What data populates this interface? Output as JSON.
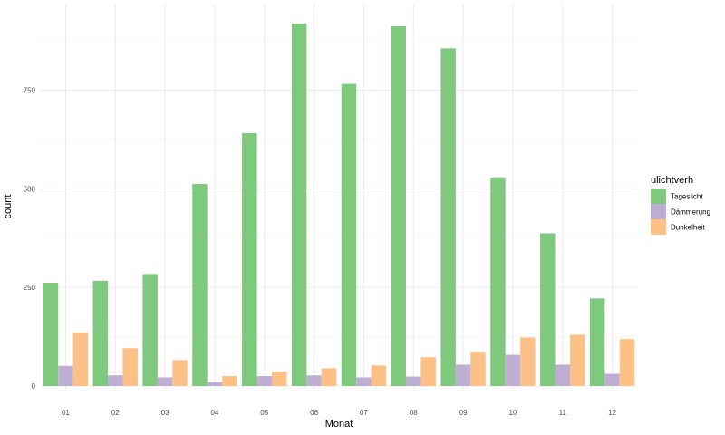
{
  "chart_data": {
    "type": "bar",
    "xlabel": "Monat",
    "ylabel": "count",
    "categories": [
      "01",
      "02",
      "03",
      "04",
      "05",
      "06",
      "07",
      "08",
      "09",
      "10",
      "11",
      "12"
    ],
    "series": [
      {
        "name": "Tageslicht",
        "color": "#7fc97f",
        "values": [
          262,
          267,
          284,
          512,
          641,
          919,
          766,
          912,
          856,
          529,
          387,
          222
        ]
      },
      {
        "name": "Dämmerung",
        "color": "#beaed4",
        "values": [
          51,
          27,
          22,
          10,
          25,
          27,
          22,
          24,
          54,
          79,
          54,
          31
        ]
      },
      {
        "name": "Dunkelheit",
        "color": "#fdc086",
        "values": [
          135,
          96,
          66,
          25,
          37,
          45,
          52,
          73,
          87,
          123,
          130,
          119
        ]
      }
    ],
    "ylim": [
      0,
      960
    ],
    "yticks": [
      0,
      250,
      500,
      750
    ],
    "grid": true,
    "legend": {
      "title": "ulichtverh",
      "position": "right"
    }
  }
}
